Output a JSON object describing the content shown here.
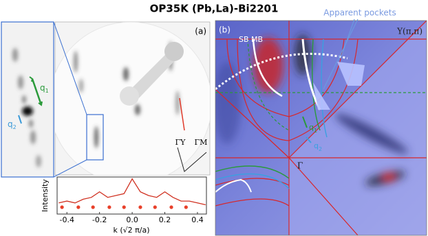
{
  "title": "OP35K (Pb,La)-Bi2201",
  "inset": {
    "q1": {
      "base": "q",
      "sub": "1"
    },
    "q2": {
      "base": "q",
      "sub": "2"
    }
  },
  "panel_a": {
    "label": "(a)",
    "gamma_y": "ΓY",
    "gamma_m": "ΓM"
  },
  "panel_b": {
    "label": "(b)",
    "sb_mb": "SB MB",
    "apparent_pockets": "Apparent pockets",
    "y_point": "Y(π,π)",
    "gamma": "Γ",
    "q1": {
      "base": "q",
      "sub": "1"
    },
    "q2": {
      "base": "q",
      "sub": "2"
    }
  },
  "chart_data": {
    "type": "line",
    "xlabel": "k (√2 π/a)",
    "ylabel": "Intensity",
    "x": [
      -0.45,
      -0.4,
      -0.35,
      -0.3,
      -0.25,
      -0.2,
      -0.15,
      -0.1,
      -0.05,
      0,
      0.05,
      0.1,
      0.15,
      0.2,
      0.25,
      0.3,
      0.35,
      0.4,
      0.45
    ],
    "series": [
      {
        "name": "Intensity",
        "color": "#d03020",
        "values": [
          0.3,
          0.35,
          0.3,
          0.4,
          0.45,
          0.6,
          0.45,
          0.5,
          0.55,
          0.95,
          0.6,
          0.5,
          0.45,
          0.6,
          0.45,
          0.35,
          0.35,
          0.3,
          0.25
        ]
      }
    ],
    "peak_positions": [
      -0.43,
      -0.33,
      -0.24,
      -0.14,
      -0.05,
      0.05,
      0.14,
      0.24,
      0.33
    ],
    "peak_color": "#e8402a",
    "xlim": [
      -0.46,
      0.455
    ],
    "ylim": [
      0,
      1
    ],
    "xticks": [
      -0.4,
      -0.2,
      {
        "value": 0,
        "label": "0.0"
      },
      0.2,
      0.4
    ]
  }
}
